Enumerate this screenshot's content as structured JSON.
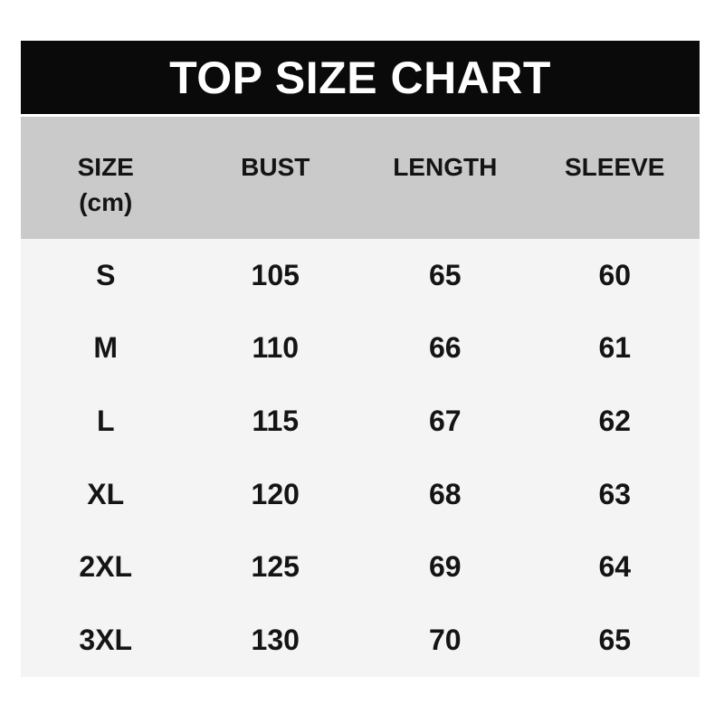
{
  "chart_data": {
    "type": "table",
    "title": "TOP SIZE CHART",
    "unit_label": "(cm)",
    "columns": [
      "SIZE",
      "BUST",
      "LENGTH",
      "SLEEVE"
    ],
    "rows": [
      [
        "S",
        105,
        65,
        60
      ],
      [
        "M",
        110,
        66,
        61
      ],
      [
        "L",
        115,
        67,
        62
      ],
      [
        "XL",
        120,
        68,
        63
      ],
      [
        "2XL",
        125,
        69,
        64
      ],
      [
        "3XL",
        130,
        70,
        65
      ]
    ]
  },
  "colors": {
    "page_bg": "#ffffff",
    "title_bar_bg": "#0a0a0a",
    "title_text": "#ffffff",
    "header_bg": "#cacaca",
    "body_bg": "#f4f4f4",
    "text": "#141414"
  }
}
